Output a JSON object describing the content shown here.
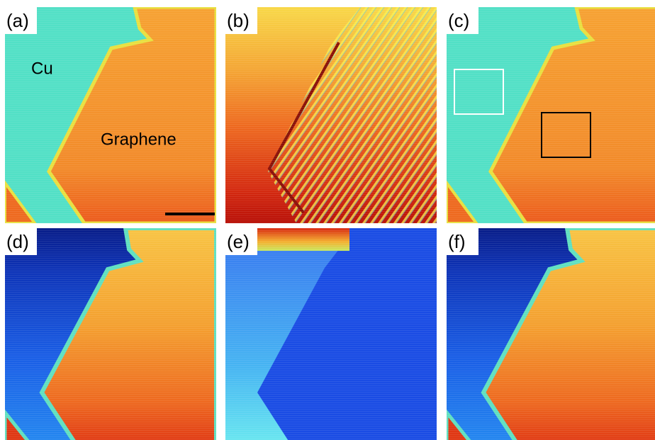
{
  "panels": [
    {
      "label": "(a)",
      "annotations": [
        "Cu",
        "Graphene"
      ]
    },
    {
      "label": "(b)"
    },
    {
      "label": "(c)"
    },
    {
      "label": "(d)"
    },
    {
      "label": "(e)"
    },
    {
      "label": "(f)"
    }
  ]
}
